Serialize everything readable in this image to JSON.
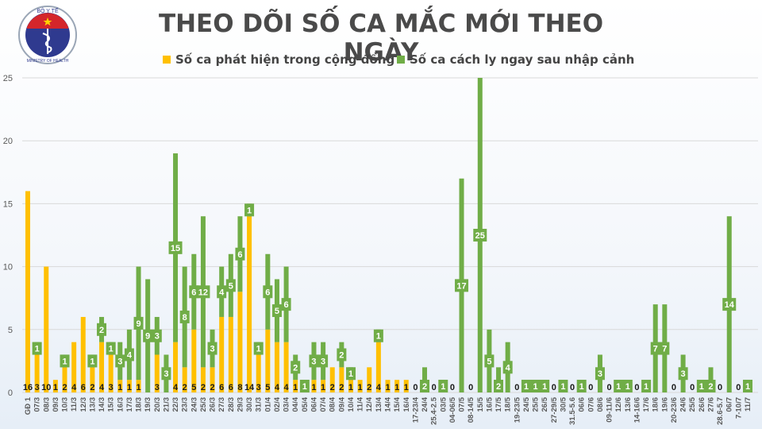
{
  "header": {
    "title": "THEO DÕI SỐ CA MẮC MỚI THEO NGÀY",
    "logo": {
      "top_text": "BỘ Y TẾ",
      "bottom_text": "MINISTRY OF HEALTH"
    }
  },
  "colors": {
    "community": "#FFC000",
    "quarantine": "#70AD47",
    "grid": "#d9d9d9",
    "axis_text": "#595959"
  },
  "chart_data": {
    "type": "bar",
    "stacked": true,
    "title": "THEO DÕI SỐ CA MẮC MỚI THEO NGÀY",
    "xlabel": "",
    "ylabel": "",
    "ylim": [
      0,
      25
    ],
    "yticks": [
      0,
      5,
      10,
      15,
      20,
      25
    ],
    "grid": true,
    "legend_position": "top",
    "categories": [
      "GĐ 1",
      "07/3",
      "08/3",
      "09/3",
      "10/3",
      "11/3",
      "12/3",
      "13/3",
      "14/3",
      "15/3",
      "16/3",
      "17/3",
      "18/3",
      "19/3",
      "20/3",
      "21/3",
      "22/3",
      "23/3",
      "24/3",
      "25/3",
      "26/3",
      "27/3",
      "28/3",
      "29/3",
      "30/3",
      "31/3",
      "01/4",
      "02/4",
      "03/4",
      "04/4",
      "05/4",
      "06/4",
      "07/4",
      "08/4",
      "09/4",
      "10/4",
      "11/4",
      "12/4",
      "13/4",
      "14/4",
      "15/4",
      "16/4",
      "17-23/4",
      "24/4",
      "25.4-2.5",
      "03/5",
      "04-06/5",
      "07/5",
      "08-14/5",
      "15/5",
      "16/5",
      "17/5",
      "18/5",
      "19-23/5",
      "24/5",
      "25/5",
      "26/5",
      "27-29/5",
      "30/5",
      "31.5-5.6",
      "06/6",
      "07/6",
      "08/6",
      "09-11/6",
      "12/6",
      "13/6",
      "14-16/6",
      "17/6",
      "18/6",
      "19/6",
      "20-23/6",
      "24/6",
      "25/5",
      "26/6",
      "27/6",
      "28.6-5.7",
      "06/7",
      "7-10/7",
      "11/7"
    ],
    "series": [
      {
        "name": "Số ca phát hiện trong cộng đồng",
        "color": "#FFC000",
        "values": [
          16,
          3,
          10,
          1,
          2,
          4,
          6,
          2,
          4,
          3,
          1,
          1,
          1,
          0,
          3,
          0,
          4,
          2,
          5,
          2,
          2,
          6,
          6,
          8,
          14,
          3,
          5,
          4,
          4,
          1,
          0,
          1,
          1,
          2,
          2,
          1,
          1,
          2,
          4,
          1,
          1,
          1,
          0,
          0,
          0,
          0,
          0,
          0,
          0,
          0,
          0,
          0,
          0,
          0,
          0,
          0,
          0,
          0,
          0,
          0,
          0,
          0,
          0,
          0,
          0,
          0,
          0,
          0,
          0,
          0,
          0,
          0,
          0,
          0,
          0,
          0,
          0,
          0,
          0
        ]
      },
      {
        "name": "Số ca cách ly ngay sau nhập cảnh",
        "color": "#70AD47",
        "values": [
          0,
          1,
          0,
          0,
          1,
          0,
          0,
          1,
          2,
          1,
          3,
          4,
          9,
          9,
          3,
          3,
          15,
          8,
          6,
          12,
          3,
          4,
          5,
          6,
          1,
          1,
          6,
          5,
          6,
          2,
          1,
          3,
          3,
          0,
          2,
          1,
          0,
          0,
          1,
          0,
          0,
          0,
          0,
          2,
          0,
          1,
          0,
          17,
          0,
          25,
          5,
          2,
          4,
          0,
          1,
          1,
          1,
          0,
          1,
          0,
          1,
          0,
          3,
          0,
          1,
          1,
          0,
          1,
          7,
          7,
          0,
          3,
          0,
          1,
          2,
          0,
          14,
          0,
          1
        ]
      }
    ]
  },
  "legend": {
    "items": [
      {
        "label": "Số ca phát hiện trong cộng đồng",
        "color": "#FFC000"
      },
      {
        "label": "Số ca cách ly ngay sau nhập cảnh",
        "color": "#70AD47"
      }
    ]
  }
}
